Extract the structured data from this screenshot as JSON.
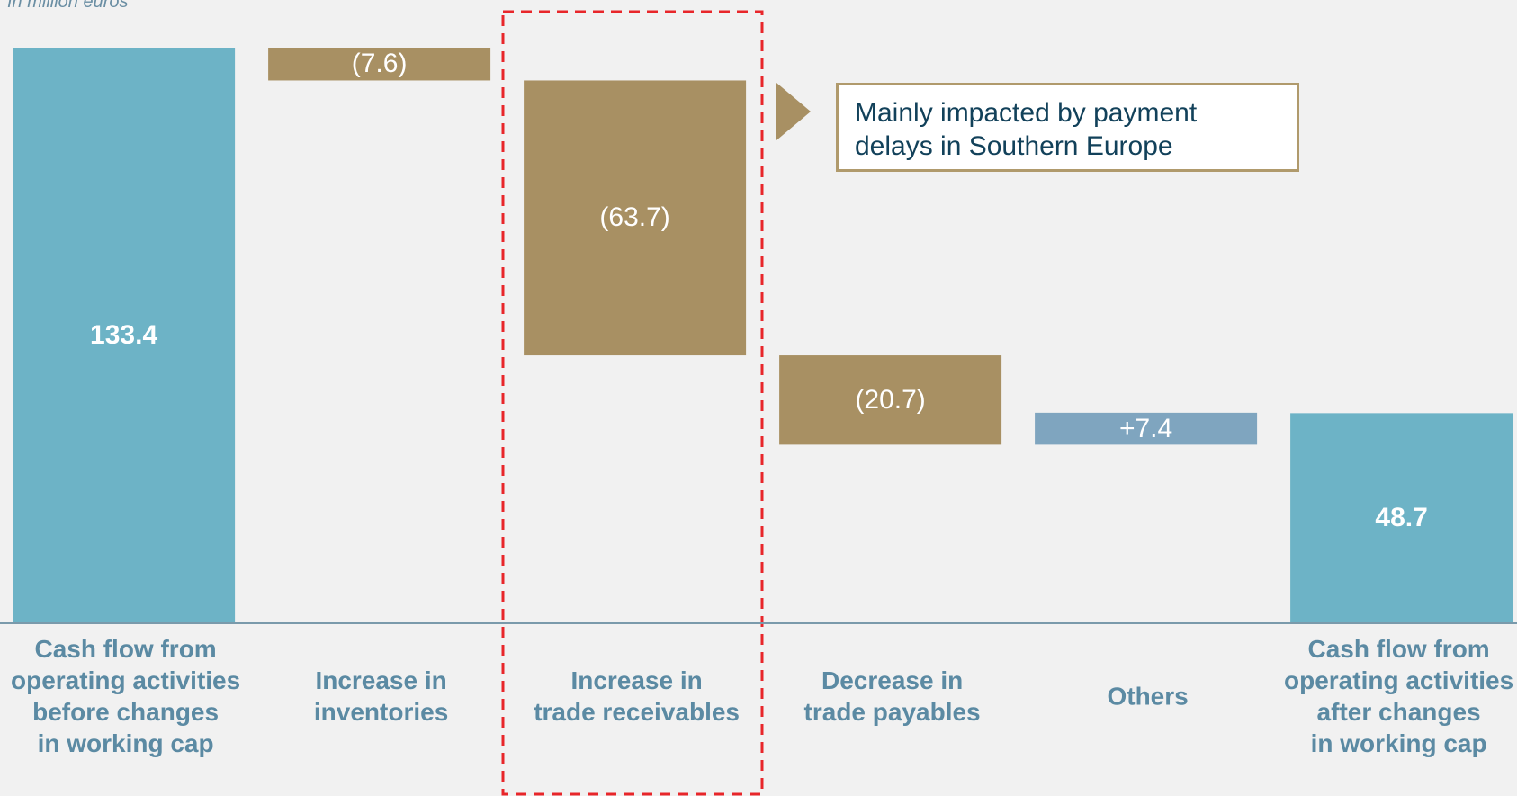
{
  "chart_data": {
    "type": "waterfall",
    "subtitle": "In million euros",
    "categories": [
      "Cash flow from\noperating activities\nbefore changes\nin working cap",
      "Increase in\ninventories",
      "Increase in\ntrade receivables",
      "Decrease in\ntrade payables",
      "Others",
      "Cash flow from\noperating activities\nafter changes\nin working cap"
    ],
    "measure": [
      "total",
      "relative",
      "relative",
      "relative",
      "relative",
      "total"
    ],
    "values": [
      133.4,
      -7.6,
      -63.7,
      -20.7,
      7.4,
      48.7
    ],
    "value_labels": [
      "133.4",
      "(7.6)",
      "(63.7)",
      "(20.7)",
      "+7.4",
      "48.7"
    ],
    "colors": {
      "total": "#6db3c6",
      "decrease": "#a89063",
      "increase": "#7fa5bf"
    },
    "annotation": "Mainly impacted by payment delays in Southern Europe"
  }
}
